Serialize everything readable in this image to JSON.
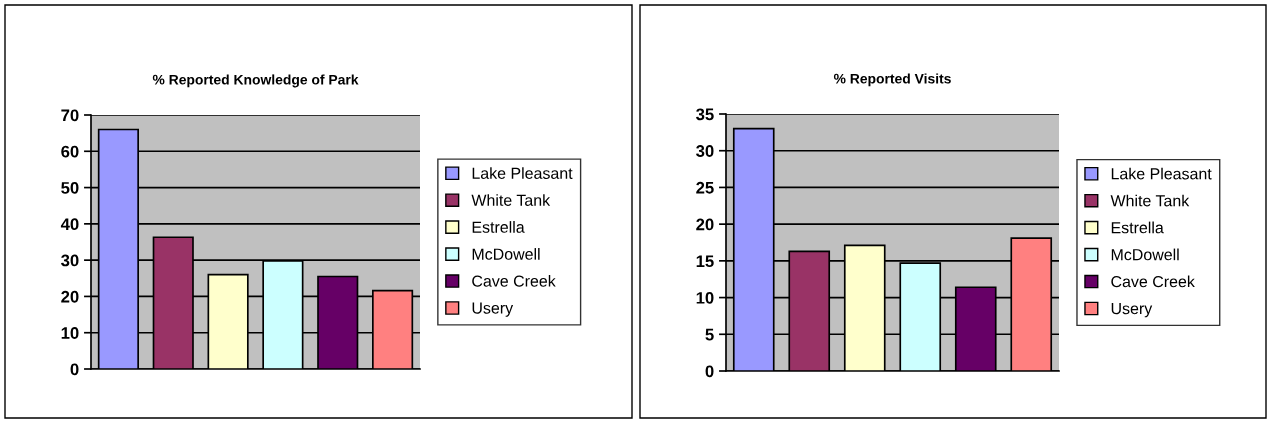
{
  "chart_data": [
    {
      "type": "bar",
      "title": "% Reported Knowledge of Park",
      "categories": [
        null
      ],
      "ylim": [
        0,
        70
      ],
      "yticks": [
        0,
        10,
        20,
        30,
        40,
        50,
        60,
        70
      ],
      "grid": "y",
      "legend": "right",
      "tick_labels": "y",
      "series": [
        {
          "name": "Lake Pleasant",
          "color": "#9999ff",
          "values": [
            66
          ]
        },
        {
          "name": "White Tank",
          "color": "#993366",
          "values": [
            36.3
          ]
        },
        {
          "name": "Estrella",
          "color": "#ffffcc",
          "values": [
            26
          ]
        },
        {
          "name": "McDowell",
          "color": "#ccffff",
          "values": [
            29.8
          ]
        },
        {
          "name": "Cave Creek",
          "color": "#660066",
          "values": [
            25.5
          ]
        },
        {
          "name": "Usery",
          "color": "#ff8080",
          "values": [
            21.6
          ]
        }
      ]
    },
    {
      "type": "bar",
      "title": "% Reported Visits",
      "categories": [
        null
      ],
      "ylim": [
        0,
        35
      ],
      "yticks": [
        0,
        5,
        10,
        15,
        20,
        25,
        30,
        35
      ],
      "grid": "y",
      "legend": "right",
      "tick_labels": "y",
      "series": [
        {
          "name": "Lake Pleasant",
          "color": "#9999ff",
          "values": [
            33
          ]
        },
        {
          "name": "White Tank",
          "color": "#993366",
          "values": [
            16.3
          ]
        },
        {
          "name": "Estrella",
          "color": "#ffffcc",
          "values": [
            17.1
          ]
        },
        {
          "name": "McDowell",
          "color": "#ccffff",
          "values": [
            14.7
          ]
        },
        {
          "name": "Cave Creek",
          "color": "#660066",
          "values": [
            11.4
          ]
        },
        {
          "name": "Usery",
          "color": "#ff8080",
          "values": [
            18.1
          ]
        }
      ]
    }
  ]
}
